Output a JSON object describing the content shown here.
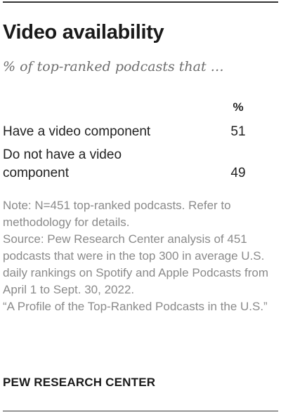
{
  "chart_data": {
    "type": "table",
    "title": "Video availability",
    "subtitle": "% of top-ranked podcasts that …",
    "column_header": "%",
    "rows": [
      {
        "label_lines": [
          "Have a video component"
        ],
        "value": "51"
      },
      {
        "label_lines": [
          "Do not have a video",
          "component"
        ],
        "value": "49"
      }
    ]
  },
  "notes": {
    "note": "Note: N=451 top-ranked podcasts. Refer to methodology for details.",
    "source": "Source: Pew Research Center analysis of 451 podcasts that were in the top 300 in average U.S. daily rankings on Spotify and Apple Podcasts from April 1 to Sept. 30, 2022.",
    "quote": "“A Profile of the Top-Ranked Podcasts in the U.S.”"
  },
  "brand": "PEW RESEARCH CENTER"
}
